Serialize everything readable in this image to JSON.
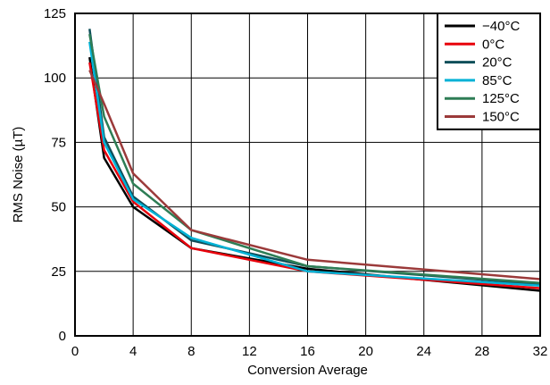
{
  "chart_data": {
    "type": "line",
    "title": "",
    "xlabel": "Conversion Average",
    "ylabel": "RMS Noise (µT)",
    "xlim": [
      0,
      32
    ],
    "ylim": [
      0,
      125
    ],
    "xticks": [
      0,
      4,
      8,
      12,
      16,
      20,
      24,
      28,
      32
    ],
    "yticks": [
      0,
      25,
      50,
      75,
      100,
      125
    ],
    "grid": true,
    "legend_position": "top-right",
    "x": [
      1,
      2,
      4,
      8,
      16,
      32
    ],
    "series": [
      {
        "name": "−40°C",
        "color": "#000000",
        "values": [
          108,
          69,
          50,
          34,
          26,
          17.5
        ]
      },
      {
        "name": "0°C",
        "color": "#e8000b",
        "values": [
          106,
          72,
          52,
          34,
          25,
          18.5
        ]
      },
      {
        "name": "20°C",
        "color": "#0f4f5a",
        "values": [
          119,
          77,
          54,
          37,
          27,
          20
        ]
      },
      {
        "name": "85°C",
        "color": "#00b2d6",
        "values": [
          114,
          75,
          53,
          38,
          25,
          19.5
        ]
      },
      {
        "name": "125°C",
        "color": "#2e7d55",
        "values": [
          117,
          85,
          59,
          41,
          27,
          20.5
        ]
      },
      {
        "name": "150°C",
        "color": "#9b3a3a",
        "values": [
          103,
          90,
          63,
          41,
          29.5,
          22
        ]
      }
    ]
  }
}
